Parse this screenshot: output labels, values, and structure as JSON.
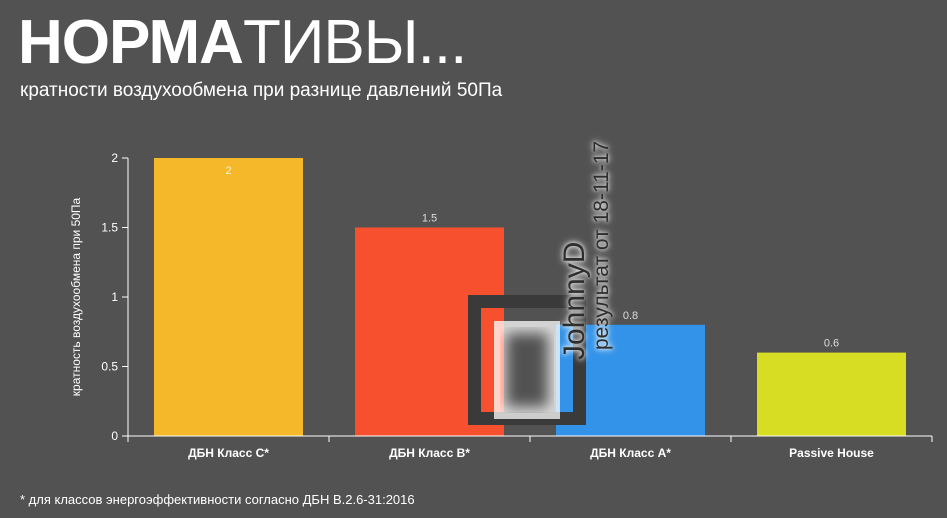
{
  "header": {
    "title_bold": "НОРМА",
    "title_rest": "ТИВЫ...",
    "subtitle": "кратности воздухообмена при разнице давлений 50Па"
  },
  "footnote": "* для классов энергоэффективности согласно ДБН В.2.6-31:2016",
  "watermark": {
    "name": "JohnnyD",
    "note": "результат от 18-11-17"
  },
  "chart_data": {
    "type": "bar",
    "categories": [
      "ДБН Класс C*",
      "ДБН Класс B*",
      "ДБН Класс A*",
      "Passive House"
    ],
    "values": [
      2,
      1.5,
      0.8,
      0.6
    ],
    "data_labels": [
      "2",
      "1.5",
      "0.8",
      "0.6"
    ],
    "colors": [
      "#f5b82a",
      "#f7502e",
      "#3393e8",
      "#d6dd22"
    ],
    "ylabel": "кратность воздухообмена при 50Па",
    "ylim": [
      0,
      2
    ],
    "yticks": [
      0,
      0.5,
      1,
      1.5,
      2
    ],
    "ytick_labels": [
      "0",
      "0.5",
      "1",
      "1.5",
      "2"
    ],
    "grid": false,
    "legend": "none"
  }
}
